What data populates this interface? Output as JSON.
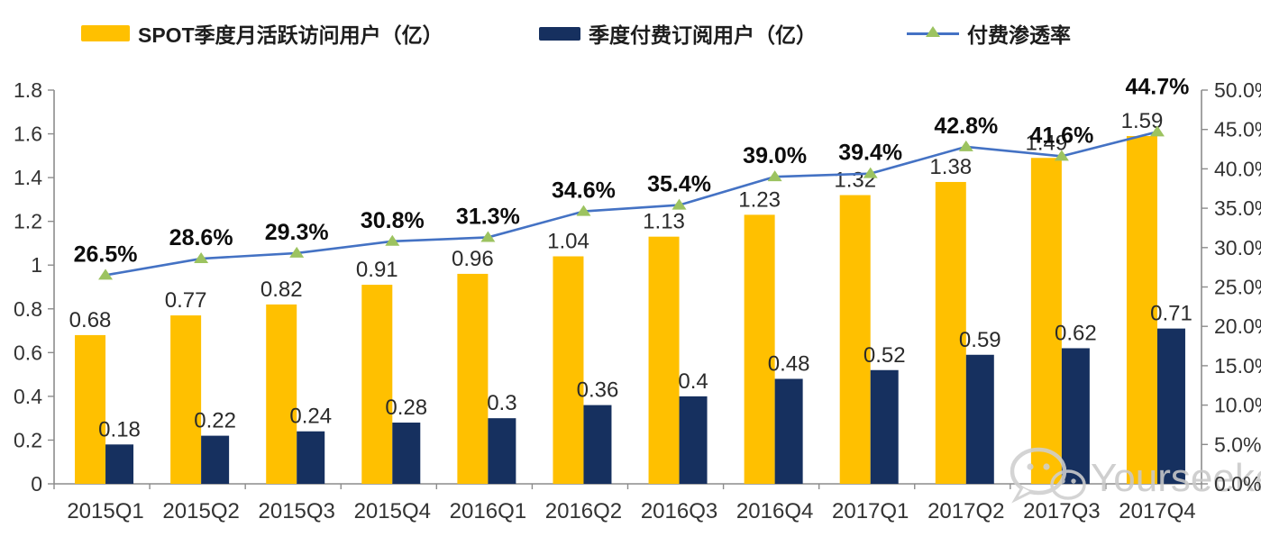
{
  "legend": [
    {
      "label": "SPOT季度月活跃访问用户（亿）",
      "color": "#FFC000",
      "type": "bar"
    },
    {
      "label": "季度付费订阅用户（亿）",
      "color": "#16305F",
      "type": "bar"
    },
    {
      "label": "付费渗透率",
      "color": "#4472C4",
      "marker_color": "#9CC360",
      "type": "line"
    }
  ],
  "watermark": {
    "text": "Yourseeker",
    "icon": "wechat-icon",
    "color": "#C9C9C9"
  },
  "chart_data": {
    "type": "combo",
    "subtype": "grouped-bars-with-line",
    "categories": [
      "2015Q1",
      "2015Q2",
      "2015Q3",
      "2015Q4",
      "2016Q1",
      "2016Q2",
      "2016Q3",
      "2016Q4",
      "2017Q1",
      "2017Q2",
      "2017Q3",
      "2017Q4"
    ],
    "series": [
      {
        "name": "SPOT季度月活跃访问用户（亿）",
        "type": "bar",
        "axis": "left",
        "color": "#FFC000",
        "values": [
          0.68,
          0.77,
          0.82,
          0.91,
          0.96,
          1.04,
          1.13,
          1.23,
          1.32,
          1.38,
          1.49,
          1.59
        ],
        "labels": [
          "0.68",
          "0.77",
          "0.82",
          "0.91",
          "0.96",
          "1.04",
          "1.13",
          "1.23",
          "1.32",
          "1.38",
          "1.49",
          "1.59"
        ]
      },
      {
        "name": "季度付费订阅用户（亿）",
        "type": "bar",
        "axis": "left",
        "color": "#16305F",
        "values": [
          0.18,
          0.22,
          0.24,
          0.28,
          0.3,
          0.36,
          0.4,
          0.48,
          0.52,
          0.59,
          0.62,
          0.71
        ],
        "labels": [
          "0.18",
          "0.22",
          "0.24",
          "0.28",
          "0.3",
          "0.36",
          "0.4",
          "0.48",
          "0.52",
          "0.59",
          "0.62",
          "0.71"
        ]
      },
      {
        "name": "付费渗透率",
        "type": "line",
        "axis": "right",
        "color": "#4472C4",
        "marker": "triangle",
        "marker_color": "#9CC360",
        "values": [
          26.5,
          28.6,
          29.3,
          30.8,
          31.3,
          34.6,
          35.4,
          39.0,
          39.4,
          42.8,
          41.6,
          44.7
        ],
        "labels": [
          "26.5%",
          "28.6%",
          "29.3%",
          "30.8%",
          "31.3%",
          "34.6%",
          "35.4%",
          "39.0%",
          "39.4%",
          "42.8%",
          "41.6%",
          "44.7%"
        ]
      }
    ],
    "left_axis": {
      "min": 0,
      "max": 1.8,
      "step": 0.2,
      "ticks": [
        "0",
        "0.2",
        "0.4",
        "0.6",
        "0.8",
        "1",
        "1.2",
        "1.4",
        "1.6",
        "1.8"
      ]
    },
    "right_axis": {
      "min": 0,
      "max": 50,
      "step": 5,
      "ticks": [
        "0.0%",
        "5.0%",
        "10.0%",
        "15.0%",
        "20.0%",
        "25.0%",
        "30.0%",
        "35.0%",
        "40.0%",
        "45.0%",
        "50.0%"
      ]
    },
    "grid": false,
    "legend_position": "top",
    "axis_color": "#8C8C8C",
    "label_color": "#333333",
    "percent_label_color": "#0d0d0d"
  }
}
